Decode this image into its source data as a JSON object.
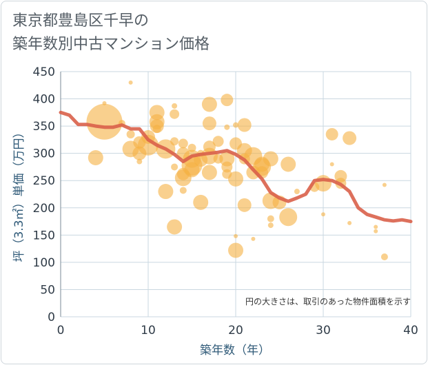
{
  "title_lines": [
    "東京都豊島区千早の",
    "築年数別中古マンション価格"
  ],
  "note": "円の大きさは、取引のあった物件面積を示す",
  "colors": {
    "bubble": "#f5b042",
    "line": "#d9604a",
    "grid": "#c9d7e0",
    "axis_text": "#2f5a78"
  },
  "chart_data": {
    "type": "scatter",
    "xlabel": "築年数（年）",
    "ylabel": "坪（3.3㎡）単価（万円）",
    "xlim": [
      0,
      40
    ],
    "ylim": [
      0,
      450
    ],
    "xticks": [
      0,
      10,
      20,
      30,
      40
    ],
    "yticks": [
      0,
      50,
      100,
      150,
      200,
      250,
      300,
      350,
      400,
      450
    ],
    "grid": true,
    "bubbles": [
      {
        "x": 5,
        "y": 358,
        "size": 26
      },
      {
        "x": 4,
        "y": 292,
        "size": 11
      },
      {
        "x": 5,
        "y": 392,
        "size": 3
      },
      {
        "x": 8,
        "y": 430,
        "size": 3
      },
      {
        "x": 7,
        "y": 355,
        "size": 5
      },
      {
        "x": 8,
        "y": 335,
        "size": 6
      },
      {
        "x": 8,
        "y": 308,
        "size": 12
      },
      {
        "x": 9,
        "y": 320,
        "size": 9
      },
      {
        "x": 9,
        "y": 300,
        "size": 10
      },
      {
        "x": 9,
        "y": 285,
        "size": 4
      },
      {
        "x": 10,
        "y": 330,
        "size": 10
      },
      {
        "x": 10,
        "y": 315,
        "size": 15
      },
      {
        "x": 11,
        "y": 375,
        "size": 11
      },
      {
        "x": 11,
        "y": 358,
        "size": 11
      },
      {
        "x": 11,
        "y": 350,
        "size": 10
      },
      {
        "x": 11,
        "y": 345,
        "size": 6
      },
      {
        "x": 12,
        "y": 308,
        "size": 14
      },
      {
        "x": 12,
        "y": 230,
        "size": 11
      },
      {
        "x": 13,
        "y": 387,
        "size": 4
      },
      {
        "x": 13,
        "y": 372,
        "size": 7
      },
      {
        "x": 13,
        "y": 322,
        "size": 6
      },
      {
        "x": 13,
        "y": 275,
        "size": 5
      },
      {
        "x": 13,
        "y": 165,
        "size": 11
      },
      {
        "x": 14,
        "y": 318,
        "size": 7
      },
      {
        "x": 14,
        "y": 300,
        "size": 9
      },
      {
        "x": 14,
        "y": 262,
        "size": 9
      },
      {
        "x": 14,
        "y": 255,
        "size": 12
      },
      {
        "x": 14,
        "y": 232,
        "size": 5
      },
      {
        "x": 15,
        "y": 310,
        "size": 6
      },
      {
        "x": 15,
        "y": 290,
        "size": 13
      },
      {
        "x": 15,
        "y": 278,
        "size": 15
      },
      {
        "x": 15,
        "y": 270,
        "size": 11
      },
      {
        "x": 16,
        "y": 300,
        "size": 5
      },
      {
        "x": 16,
        "y": 288,
        "size": 10
      },
      {
        "x": 16,
        "y": 210,
        "size": 11
      },
      {
        "x": 17,
        "y": 390,
        "size": 11
      },
      {
        "x": 17,
        "y": 355,
        "size": 10
      },
      {
        "x": 17,
        "y": 312,
        "size": 9
      },
      {
        "x": 17,
        "y": 295,
        "size": 12
      },
      {
        "x": 17,
        "y": 265,
        "size": 11
      },
      {
        "x": 18,
        "y": 322,
        "size": 8
      },
      {
        "x": 18,
        "y": 290,
        "size": 7
      },
      {
        "x": 19,
        "y": 398,
        "size": 9
      },
      {
        "x": 19,
        "y": 348,
        "size": 4
      },
      {
        "x": 19,
        "y": 290,
        "size": 11
      },
      {
        "x": 19,
        "y": 275,
        "size": 8
      },
      {
        "x": 19,
        "y": 262,
        "size": 7
      },
      {
        "x": 20,
        "y": 352,
        "size": 4
      },
      {
        "x": 20,
        "y": 318,
        "size": 9
      },
      {
        "x": 20,
        "y": 253,
        "size": 11
      },
      {
        "x": 20,
        "y": 148,
        "size": 3
      },
      {
        "x": 20,
        "y": 122,
        "size": 11
      },
      {
        "x": 21,
        "y": 352,
        "size": 10
      },
      {
        "x": 21,
        "y": 305,
        "size": 11
      },
      {
        "x": 21,
        "y": 290,
        "size": 8
      },
      {
        "x": 21,
        "y": 205,
        "size": 10
      },
      {
        "x": 22,
        "y": 295,
        "size": 13
      },
      {
        "x": 22,
        "y": 265,
        "size": 10
      },
      {
        "x": 22,
        "y": 143,
        "size": 3
      },
      {
        "x": 23,
        "y": 280,
        "size": 11
      },
      {
        "x": 23,
        "y": 275,
        "size": 13
      },
      {
        "x": 23,
        "y": 265,
        "size": 9
      },
      {
        "x": 24,
        "y": 290,
        "size": 11
      },
      {
        "x": 24,
        "y": 213,
        "size": 12
      },
      {
        "x": 24,
        "y": 180,
        "size": 5
      },
      {
        "x": 24,
        "y": 168,
        "size": 4
      },
      {
        "x": 25,
        "y": 210,
        "size": 10
      },
      {
        "x": 26,
        "y": 280,
        "size": 11
      },
      {
        "x": 26,
        "y": 183,
        "size": 13
      },
      {
        "x": 27,
        "y": 230,
        "size": 4
      },
      {
        "x": 29,
        "y": 238,
        "size": 7
      },
      {
        "x": 30,
        "y": 245,
        "size": 12
      },
      {
        "x": 30,
        "y": 188,
        "size": 3
      },
      {
        "x": 31,
        "y": 335,
        "size": 9
      },
      {
        "x": 31,
        "y": 280,
        "size": 3
      },
      {
        "x": 32,
        "y": 258,
        "size": 9
      },
      {
        "x": 32,
        "y": 245,
        "size": 8
      },
      {
        "x": 33,
        "y": 328,
        "size": 10
      },
      {
        "x": 33,
        "y": 172,
        "size": 3
      },
      {
        "x": 36,
        "y": 165,
        "size": 3
      },
      {
        "x": 36,
        "y": 157,
        "size": 3
      },
      {
        "x": 37,
        "y": 242,
        "size": 3
      },
      {
        "x": 37,
        "y": 110,
        "size": 5
      }
    ],
    "series": [
      {
        "values": [
          [
            0,
            375
          ],
          [
            1,
            370
          ],
          [
            2,
            353
          ],
          [
            3,
            353
          ],
          [
            4,
            350
          ],
          [
            5,
            348
          ],
          [
            6,
            348
          ],
          [
            7,
            352
          ],
          [
            8,
            345
          ],
          [
            9,
            345
          ],
          [
            10,
            325
          ],
          [
            11,
            315
          ],
          [
            12,
            308
          ],
          [
            13,
            298
          ],
          [
            14,
            285
          ],
          [
            15,
            295
          ],
          [
            16,
            298
          ],
          [
            17,
            300
          ],
          [
            18,
            302
          ],
          [
            19,
            305
          ],
          [
            20,
            298
          ],
          [
            21,
            288
          ],
          [
            22,
            270
          ],
          [
            23,
            253
          ],
          [
            24,
            228
          ],
          [
            25,
            218
          ],
          [
            26,
            212
          ],
          [
            27,
            218
          ],
          [
            28,
            225
          ],
          [
            29,
            250
          ],
          [
            30,
            252
          ],
          [
            31,
            250
          ],
          [
            32,
            243
          ],
          [
            33,
            230
          ],
          [
            34,
            200
          ],
          [
            35,
            188
          ],
          [
            36,
            183
          ],
          [
            37,
            178
          ],
          [
            38,
            176
          ],
          [
            39,
            178
          ],
          [
            40,
            175
          ]
        ]
      }
    ]
  }
}
